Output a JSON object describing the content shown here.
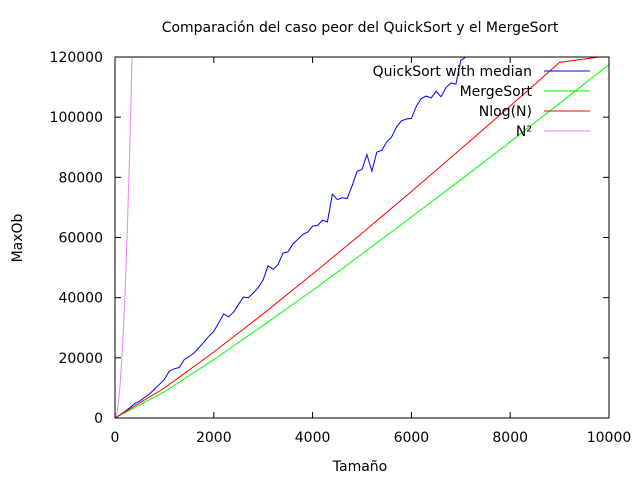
{
  "chart_data": {
    "type": "line",
    "title": "Comparación del caso peor del QuickSort y el MergeSort",
    "xlabel": "Tamaño",
    "ylabel": "MaxOb",
    "xlim": [
      0,
      10000
    ],
    "ylim": [
      0,
      120000
    ],
    "xticks": [
      0,
      2000,
      4000,
      6000,
      8000,
      10000
    ],
    "yticks": [
      0,
      20000,
      40000,
      60000,
      80000,
      100000,
      120000
    ],
    "grid": false,
    "legend_position": "top-right",
    "series": [
      {
        "name": "QuickSort with median",
        "color": "#0000ff",
        "x": [
          0,
          100,
          200,
          300,
          400,
          500,
          600,
          700,
          800,
          900,
          1000,
          1100,
          1200,
          1300,
          1400,
          1500,
          1600,
          1700,
          1800,
          1900,
          2000,
          2100,
          2200,
          2300,
          2400,
          2500,
          2600,
          2700,
          2800,
          2900,
          3000,
          3100,
          3200,
          3300,
          3400,
          3500,
          3600,
          3700,
          3800,
          3900,
          4000,
          4100,
          4200,
          4300,
          4400,
          4500,
          4600,
          4700,
          4800,
          4900,
          5000,
          5100,
          5200,
          5300,
          5400,
          5500,
          5600,
          5700,
          5800,
          5900,
          6000,
          6100,
          6200,
          6300,
          6400,
          6500,
          6600,
          6700,
          6800,
          6900,
          7000,
          7100
        ],
        "y": [
          0,
          1000,
          2200,
          3400,
          4800,
          5600,
          6800,
          8000,
          9600,
          11200,
          12800,
          15600,
          16400,
          16800,
          19400,
          20400,
          21600,
          23400,
          25200,
          27200,
          28800,
          31600,
          34600,
          33600,
          35200,
          37800,
          40200,
          40000,
          41600,
          43400,
          46000,
          50600,
          49400,
          51000,
          54800,
          55200,
          57800,
          59400,
          61000,
          61800,
          63800,
          64000,
          65800,
          65200,
          74400,
          72600,
          73200,
          73000,
          77200,
          82000,
          82600,
          87600,
          82000,
          88400,
          89000,
          91800,
          93400,
          96800,
          98800,
          99400,
          99600,
          103600,
          106200,
          107000,
          106400,
          108600,
          106800,
          109800,
          111400,
          111000,
          118800,
          120000
        ]
      },
      {
        "name": "MergeSort",
        "color": "#00ff00",
        "x": [
          0,
          1000,
          2000,
          3000,
          4000,
          5000,
          6000,
          7000,
          8000,
          9000,
          10000
        ],
        "y": [
          0,
          8700,
          19400,
          30800,
          42400,
          54500,
          66800,
          79200,
          91800,
          104600,
          117500
        ]
      },
      {
        "name": "Nlog(N)",
        "color": "#ff0000",
        "x": [
          0,
          1000,
          2000,
          3000,
          4000,
          5000,
          6000,
          7000,
          8000,
          9000,
          9800
        ],
        "y": [
          0,
          9966,
          21932,
          34652,
          47863,
          61439,
          75304,
          89412,
          103726,
          118221,
          120000
        ]
      },
      {
        "name": "N²",
        "color": "#ee82ee",
        "x": [
          0,
          50,
          100,
          150,
          200,
          250,
          300,
          346
        ],
        "y": [
          0,
          2500,
          10000,
          22500,
          40000,
          62500,
          90000,
          120000
        ]
      }
    ]
  }
}
